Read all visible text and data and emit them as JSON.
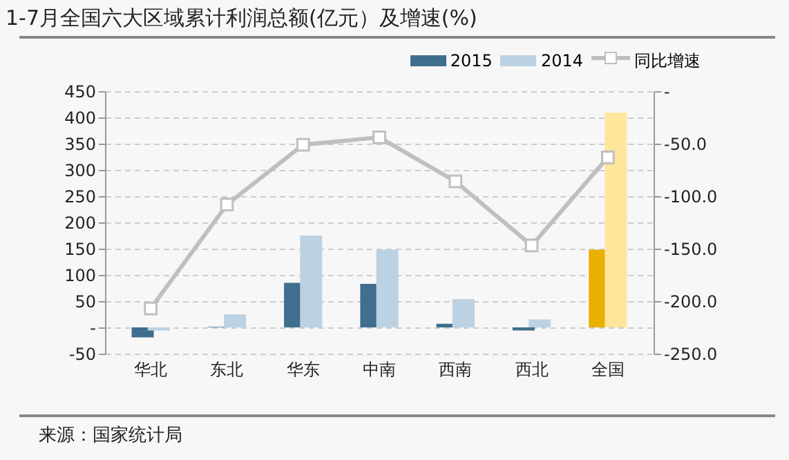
{
  "chart_data": {
    "type": "bar",
    "title": "1-7月全国六大区域累计利润总额(亿元）及增速(%)",
    "categories": [
      "华北",
      "东北",
      "华东",
      "中南",
      "西南",
      "西北",
      "全国"
    ],
    "series": [
      {
        "name": "2015",
        "color": "#406e8e",
        "colors": [
          "#406e8e",
          "#406e8e",
          "#406e8e",
          "#406e8e",
          "#406e8e",
          "#406e8e",
          "#e8b000"
        ],
        "values": [
          -19,
          1,
          85,
          83,
          7,
          -6,
          148
        ]
      },
      {
        "name": "2014",
        "color": "#bcd2e2",
        "colors": [
          "#bcd2e2",
          "#bcd2e2",
          "#bcd2e2",
          "#bcd2e2",
          "#bcd2e2",
          "#bcd2e2",
          "#ffe69a"
        ],
        "values": [
          -6,
          25,
          175,
          148,
          54,
          15,
          409
        ]
      },
      {
        "name": "同比增速",
        "type": "line",
        "axis": "y2",
        "color": "#bfbfbf",
        "marker": "square",
        "values": [
          -207,
          -108,
          -51,
          -44,
          -86,
          -147,
          -63
        ]
      }
    ],
    "ylim": [
      -50,
      450
    ],
    "yticks": [
      -50,
      {
        "value": 0,
        "label": "-"
      },
      50,
      100,
      150,
      200,
      250,
      300,
      350,
      400,
      450
    ],
    "y2lim": [
      -250,
      0
    ],
    "y2ticks": [
      {
        "value": -250,
        "label": "-250.0"
      },
      {
        "value": -200,
        "label": "-200.0"
      },
      {
        "value": -150,
        "label": "-150.0"
      },
      {
        "value": -100,
        "label": "-100.0"
      },
      {
        "value": -50,
        "label": "-50.0"
      },
      {
        "value": 0,
        "label": "-"
      }
    ],
    "grid": "y",
    "legend": "top right",
    "annotations": [
      "来源：国家统计局"
    ]
  }
}
